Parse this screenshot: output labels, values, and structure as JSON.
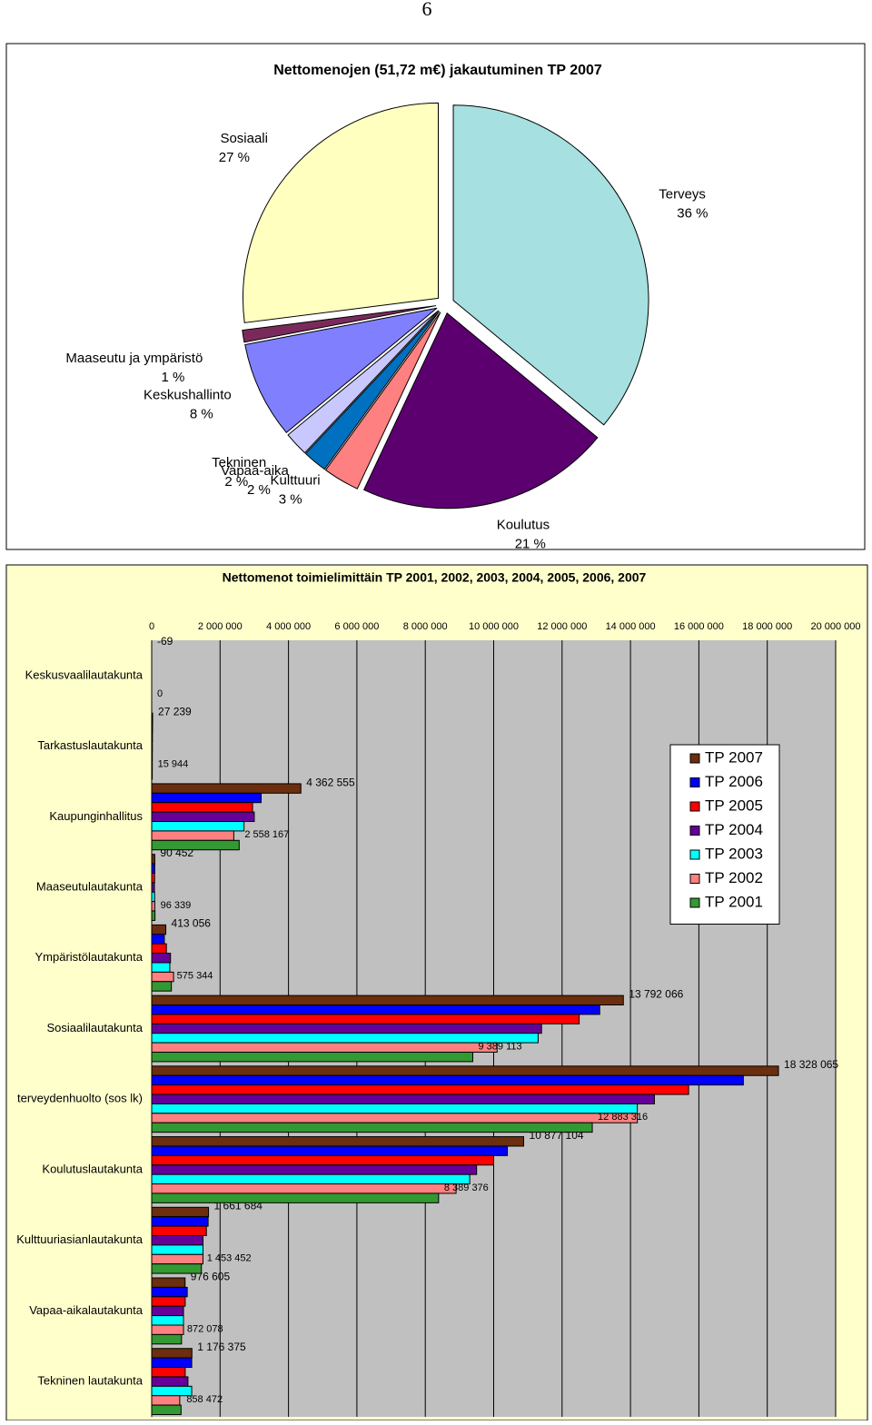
{
  "page_number": "6",
  "chart_data": [
    {
      "type": "pie",
      "title": "Nettomenojen (51,72 m€) jakautuminen TP 2007",
      "categories": [
        "Terveys",
        "Koulutus",
        "Kulttuuri",
        "Vapaa-aika",
        "Tekninen",
        "Keskushallinto",
        "Maaseutu ja ympäristö",
        "Sosiaali"
      ],
      "values": [
        36,
        21,
        3,
        2,
        2,
        8,
        1,
        27
      ],
      "value_labels": [
        "36 %",
        "21 %",
        "3 %",
        "2 %",
        "2 %",
        "8 %",
        "1 %",
        "27 %"
      ],
      "colors": [
        "#a6e0e0",
        "#5c0070",
        "#ff8080",
        "#0070c0",
        "#c8c8ff",
        "#8080ff",
        "#7a2a5a",
        "#ffffc0"
      ]
    },
    {
      "type": "hbar",
      "title": "Nettomenot toimielimittäin TP 2001, 2002, 2003, 2004, 2005, 2006, 2007",
      "categories": [
        "Keskusvaalilautakunta",
        "Tarkastuslautakunta",
        "Kaupunginhallitus",
        "Maaseutulautakunta",
        "Ympäristölautakunta",
        "Sosiaalilautakunta",
        "terveydenhuolto (sos lk)",
        "Koulutuslautakunta",
        "Kulttuuriasianlautakunta",
        "Vapaa-aikalautakunta",
        "Tekninen lautakunta"
      ],
      "series": [
        {
          "name": "TP 2007",
          "color": "#6b2e0e",
          "values": [
            -69,
            27239,
            4362555,
            90452,
            413056,
            13792066,
            18328065,
            10877104,
            1661684,
            976605,
            1176375
          ],
          "value_labels": [
            "-69",
            "27 239",
            "4 362 555",
            "90 452",
            "413 056",
            "13 792 066",
            "18 328 065",
            "10 877 104",
            "1 661 684",
            "976 605",
            "1 176 375"
          ]
        },
        {
          "name": "TP 2006",
          "color": "#0000ff",
          "values": [
            0,
            25000,
            3200000,
            90000,
            370000,
            13100000,
            17300000,
            10400000,
            1650000,
            1040000,
            1170000
          ]
        },
        {
          "name": "TP 2005",
          "color": "#ff0000",
          "values": [
            0,
            22000,
            2950000,
            85000,
            430000,
            12500000,
            15700000,
            10000000,
            1600000,
            980000,
            980000
          ]
        },
        {
          "name": "TP 2004",
          "color": "#660099",
          "values": [
            0,
            20000,
            3000000,
            80000,
            550000,
            11400000,
            14700000,
            9500000,
            1500000,
            930000,
            1060000
          ]
        },
        {
          "name": "TP 2003",
          "color": "#00ffff",
          "values": [
            0,
            18000,
            2700000,
            85000,
            530000,
            11300000,
            14200000,
            9300000,
            1500000,
            930000,
            1170000
          ]
        },
        {
          "name": "TP 2002",
          "color": "#ff8080",
          "values": [
            0,
            17000,
            2400000,
            90000,
            640000,
            10100000,
            14200000,
            8900000,
            1500000,
            930000,
            820000
          ]
        },
        {
          "name": "TP 2001",
          "color": "#339933",
          "values": [
            0,
            15944,
            2558167,
            96339,
            575344,
            9389113,
            12883316,
            8389376,
            1453452,
            872078,
            858472
          ],
          "value_labels": [
            "0",
            "15 944",
            "2 558 167",
            "96 339",
            "575 344",
            "9 389 113",
            "12 883 316",
            "8 389 376",
            "1 453 452",
            "872 078",
            "858 472"
          ]
        }
      ],
      "xlim": [
        0,
        20000000
      ],
      "xticks": [
        0,
        {
          "value": 2000000,
          "label": "2 000 000"
        },
        {
          "value": 4000000,
          "label": "4 000 000"
        },
        {
          "value": 6000000,
          "label": "6 000 000"
        },
        {
          "value": 8000000,
          "label": "8 000 000"
        },
        {
          "value": 10000000,
          "label": "10 000 000"
        },
        {
          "value": 12000000,
          "label": "12 000 000"
        },
        {
          "value": 14000000,
          "label": "14 000 000"
        },
        {
          "value": 16000000,
          "label": "16 000 000"
        },
        {
          "value": 18000000,
          "label": "18 000 000"
        },
        {
          "value": 20000000,
          "label": "20 000 000"
        }
      ],
      "grid": true,
      "legend": "right"
    }
  ]
}
